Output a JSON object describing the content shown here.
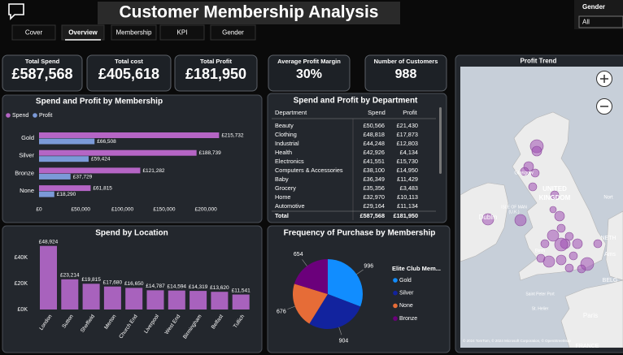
{
  "header": {
    "title": "Customer Membership Analysis"
  },
  "tabs": [
    "Cover",
    "Overview",
    "Membership",
    "KPI",
    "Gender"
  ],
  "slicer": {
    "label": "Gender",
    "value": "All"
  },
  "kpis": [
    {
      "label": "Total Spend",
      "value": "£587,568"
    },
    {
      "label": "Total cost",
      "value": "£405,618"
    },
    {
      "label": "Total Profit",
      "value": "£181,950"
    },
    {
      "label": "Average Profit Margin",
      "value": "30%"
    },
    {
      "label": "Number of Customers",
      "value": "988"
    }
  ],
  "chart_data": [
    {
      "type": "bar",
      "title": "Spend and Profit by Membership",
      "categories": [
        "Gold",
        "Silver",
        "Bronze",
        "None"
      ],
      "series": [
        {
          "name": "Spend",
          "color": "#b565c5",
          "values": [
            215732,
            188739,
            121282,
            61815
          ],
          "value_labels": [
            "£215,732",
            "£188,739",
            "£121,282",
            "£61,815"
          ]
        },
        {
          "name": "Profit",
          "color": "#7b9ad8",
          "values": [
            66508,
            59424,
            37729,
            18290
          ],
          "value_labels": [
            "£66,508",
            "£59,424",
            "£37,729",
            "£18,290"
          ]
        }
      ],
      "xlim": [
        0,
        230000
      ],
      "xticks": [
        {
          "value": 0,
          "label": "£0"
        },
        {
          "value": 50000,
          "label": "£50,000"
        },
        {
          "value": 100000,
          "label": "£100,000"
        },
        {
          "value": 150000,
          "label": "£150,000"
        },
        {
          "value": 200000,
          "label": "£200,000"
        }
      ]
    },
    {
      "type": "column",
      "title": "Spend by Location",
      "color": "#a862bd",
      "categories": [
        "London",
        "Sutton",
        "Sheffield",
        "Merton",
        "Church End",
        "Liverpool",
        "West End",
        "Birmingham",
        "Belfast",
        "Tullich"
      ],
      "values": [
        48924,
        23214,
        19815,
        17680,
        16650,
        14787,
        14594,
        14319,
        13620,
        11541
      ],
      "value_labels": [
        "£48,924",
        "£23,214",
        "£19,815",
        "£17,680",
        "£16,650",
        "£14,787",
        "£14,594",
        "£14,319",
        "£13,620",
        "£11,541"
      ],
      "ylim": [
        0,
        50000
      ],
      "yticks": [
        {
          "value": 0,
          "label": "£0K"
        },
        {
          "value": 20000,
          "label": "£20K"
        },
        {
          "value": 40000,
          "label": "£40K"
        }
      ]
    },
    {
      "type": "pie",
      "title": "Frequency of Purchase by Membership",
      "legend_title": "Elite Club Mem...",
      "categories": [
        "Gold",
        "Silver",
        "None",
        "Bronze"
      ],
      "values": [
        996,
        904,
        676,
        654
      ],
      "colors": [
        "#118dff",
        "#12239e",
        "#e66c37",
        "#6b007b"
      ]
    }
  ],
  "table": {
    "title": "Spend and Profit by Department",
    "columns": [
      "Department",
      "Spend",
      "Profit"
    ],
    "rows": [
      [
        "Beauty",
        "£50,566",
        "£21,430"
      ],
      [
        "Clothing",
        "£48,818",
        "£17,873"
      ],
      [
        "Industrial",
        "£44,248",
        "£12,803"
      ],
      [
        "Health",
        "£42,926",
        "£4,134"
      ],
      [
        "Electronics",
        "£41,551",
        "£15,730"
      ],
      [
        "Computers & Accessories",
        "£38,100",
        "£14,950"
      ],
      [
        "Baby",
        "£36,349",
        "£11,429"
      ],
      [
        "Grocery",
        "£35,356",
        "£3,483"
      ],
      [
        "Home",
        "£32,970",
        "£10,113"
      ],
      [
        "Automotive",
        "£29,164",
        "£11,134"
      ]
    ],
    "total": [
      "Total",
      "£587,568",
      "£181,950"
    ]
  },
  "map": {
    "title": "Profit Trend",
    "labels": [
      "UNITED",
      "KINGDOM",
      "Dublin",
      "ISLE OF MAN",
      "(U.K.)",
      "Glasgow",
      "Birm",
      "NETH",
      "Ams",
      "BELG",
      "Paris",
      "FRANCE",
      "Saint Peter Port",
      "St. Helier",
      "Nort"
    ],
    "attribution": "© 2024 TomTom, © 2024 Microsoft Corporation, © OpenStreetMap"
  }
}
